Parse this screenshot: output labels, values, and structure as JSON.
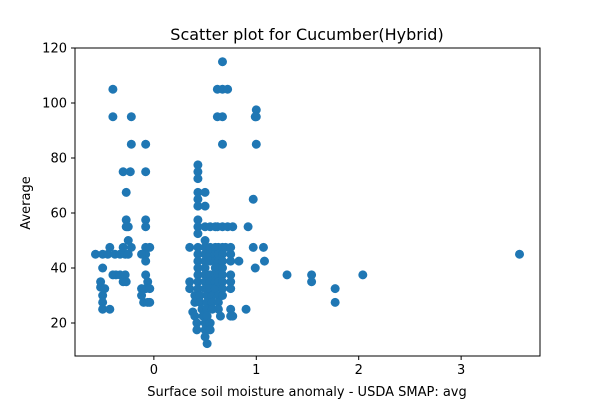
{
  "chart_data": {
    "type": "scatter",
    "title": "Scatter plot for Cucumber(Hybrid)",
    "xlabel": "Surface soil moisture anomaly  - USDA SMAP: avg",
    "ylabel": "Average",
    "xlim": [
      -0.77,
      3.77
    ],
    "ylim": [
      8,
      120
    ],
    "xticks": [
      0,
      1,
      2,
      3
    ],
    "yticks": [
      20,
      40,
      60,
      80,
      100,
      120
    ],
    "grid": false,
    "marker_color": "#1f77b4",
    "points": [
      [
        -0.57,
        45
      ],
      [
        -0.5,
        45
      ],
      [
        -0.45,
        45
      ],
      [
        -0.43,
        47.5
      ],
      [
        -0.38,
        45
      ],
      [
        -0.33,
        45
      ],
      [
        -0.28,
        45
      ],
      [
        -0.25,
        45
      ],
      [
        -0.22,
        47.5
      ],
      [
        -0.25,
        55
      ],
      [
        -0.27,
        57.5
      ],
      [
        -0.25,
        50
      ],
      [
        -0.3,
        47.5
      ],
      [
        -0.27,
        55
      ],
      [
        -0.52,
        33
      ],
      [
        -0.52,
        35
      ],
      [
        -0.5,
        30
      ],
      [
        -0.5,
        27.5
      ],
      [
        -0.5,
        25
      ],
      [
        -0.48,
        32.5
      ],
      [
        -0.5,
        40
      ],
      [
        -0.43,
        25
      ],
      [
        -0.4,
        37.5
      ],
      [
        -0.37,
        37.5
      ],
      [
        -0.33,
        37.5
      ],
      [
        -0.3,
        35
      ],
      [
        -0.28,
        37.5
      ],
      [
        -0.27,
        35
      ],
      [
        -0.4,
        105
      ],
      [
        -0.4,
        95
      ],
      [
        -0.22,
        95
      ],
      [
        -0.3,
        75
      ],
      [
        -0.23,
        75
      ],
      [
        -0.22,
        85
      ],
      [
        -0.27,
        67.5
      ],
      [
        -0.08,
        85
      ],
      [
        -0.08,
        75
      ],
      [
        -0.08,
        57.5
      ],
      [
        -0.08,
        55
      ],
      [
        -0.08,
        47.5
      ],
      [
        -0.04,
        47.5
      ],
      [
        -0.08,
        45
      ],
      [
        -0.12,
        45
      ],
      [
        -0.08,
        42.5
      ],
      [
        -0.08,
        37.5
      ],
      [
        -0.06,
        35
      ],
      [
        -0.08,
        32.5
      ],
      [
        -0.12,
        32.5
      ],
      [
        -0.04,
        32.5
      ],
      [
        -0.1,
        27.5
      ],
      [
        -0.06,
        27.5
      ],
      [
        -0.04,
        27.5
      ],
      [
        -0.12,
        30
      ],
      [
        0.35,
        47.5
      ],
      [
        0.35,
        35
      ],
      [
        0.35,
        32.5
      ],
      [
        0.38,
        24
      ],
      [
        0.4,
        30
      ],
      [
        0.4,
        27.5
      ],
      [
        0.4,
        22.5
      ],
      [
        0.42,
        20
      ],
      [
        0.42,
        17.5
      ],
      [
        0.43,
        77.5
      ],
      [
        0.43,
        75
      ],
      [
        0.43,
        72.5
      ],
      [
        0.43,
        67.5
      ],
      [
        0.43,
        65
      ],
      [
        0.43,
        62.5
      ],
      [
        0.43,
        57.5
      ],
      [
        0.43,
        55
      ],
      [
        0.43,
        52.5
      ],
      [
        0.43,
        47.5
      ],
      [
        0.43,
        45
      ],
      [
        0.43,
        42.5
      ],
      [
        0.43,
        40
      ],
      [
        0.43,
        37.5
      ],
      [
        0.43,
        35
      ],
      [
        0.43,
        32.5
      ],
      [
        0.45,
        30
      ],
      [
        0.45,
        27.5
      ],
      [
        0.47,
        25
      ],
      [
        0.48,
        22.5
      ],
      [
        0.5,
        20
      ],
      [
        0.5,
        17.5
      ],
      [
        0.5,
        15
      ],
      [
        0.52,
        12.5
      ],
      [
        0.5,
        67.5
      ],
      [
        0.5,
        62.5
      ],
      [
        0.5,
        55
      ],
      [
        0.5,
        50
      ],
      [
        0.5,
        47.5
      ],
      [
        0.5,
        45
      ],
      [
        0.5,
        42.5
      ],
      [
        0.5,
        40
      ],
      [
        0.5,
        37.5
      ],
      [
        0.5,
        35
      ],
      [
        0.5,
        32.5
      ],
      [
        0.52,
        30
      ],
      [
        0.52,
        27.5
      ],
      [
        0.52,
        25
      ],
      [
        0.52,
        22.5
      ],
      [
        0.55,
        20
      ],
      [
        0.55,
        17.5
      ],
      [
        0.55,
        55
      ],
      [
        0.55,
        47.5
      ],
      [
        0.55,
        45
      ],
      [
        0.55,
        42.5
      ],
      [
        0.55,
        37.5
      ],
      [
        0.55,
        35
      ],
      [
        0.55,
        32.5
      ],
      [
        0.57,
        30
      ],
      [
        0.57,
        27.5
      ],
      [
        0.57,
        25
      ],
      [
        0.6,
        55
      ],
      [
        0.6,
        47.5
      ],
      [
        0.6,
        45
      ],
      [
        0.6,
        42.5
      ],
      [
        0.6,
        40
      ],
      [
        0.6,
        37.5
      ],
      [
        0.6,
        35
      ],
      [
        0.6,
        32.5
      ],
      [
        0.62,
        105
      ],
      [
        0.62,
        95
      ],
      [
        0.62,
        55
      ],
      [
        0.63,
        47.5
      ],
      [
        0.63,
        45
      ],
      [
        0.63,
        42.5
      ],
      [
        0.63,
        40
      ],
      [
        0.63,
        37.5
      ],
      [
        0.63,
        35
      ],
      [
        0.63,
        30
      ],
      [
        0.63,
        27.5
      ],
      [
        0.63,
        25
      ],
      [
        0.65,
        22.5
      ],
      [
        0.67,
        115
      ],
      [
        0.67,
        105
      ],
      [
        0.67,
        95
      ],
      [
        0.67,
        85
      ],
      [
        0.67,
        55
      ],
      [
        0.67,
        47.5
      ],
      [
        0.67,
        45
      ],
      [
        0.67,
        42.5
      ],
      [
        0.67,
        40
      ],
      [
        0.67,
        37.5
      ],
      [
        0.67,
        35
      ],
      [
        0.67,
        32.5
      ],
      [
        0.67,
        30
      ],
      [
        0.7,
        47.5
      ],
      [
        0.72,
        105
      ],
      [
        0.72,
        55
      ],
      [
        0.75,
        45
      ],
      [
        0.75,
        47.5
      ],
      [
        0.75,
        42.5
      ],
      [
        0.75,
        37.5
      ],
      [
        0.75,
        35
      ],
      [
        0.75,
        32.5
      ],
      [
        0.75,
        25
      ],
      [
        0.75,
        22.5
      ],
      [
        0.77,
        55
      ],
      [
        0.77,
        22.5
      ],
      [
        0.83,
        42.5
      ],
      [
        0.9,
        25
      ],
      [
        0.92,
        55
      ],
      [
        0.97,
        65
      ],
      [
        0.97,
        47.5
      ],
      [
        1.0,
        97.5
      ],
      [
        0.99,
        95
      ],
      [
        1.0,
        95
      ],
      [
        1.0,
        85
      ],
      [
        0.99,
        40
      ],
      [
        1.07,
        47.5
      ],
      [
        1.08,
        42.5
      ],
      [
        1.3,
        37.5
      ],
      [
        1.54,
        37.5
      ],
      [
        1.54,
        35
      ],
      [
        1.77,
        32.5
      ],
      [
        1.77,
        27.5
      ],
      [
        2.04,
        37.5
      ],
      [
        3.57,
        45
      ]
    ]
  }
}
